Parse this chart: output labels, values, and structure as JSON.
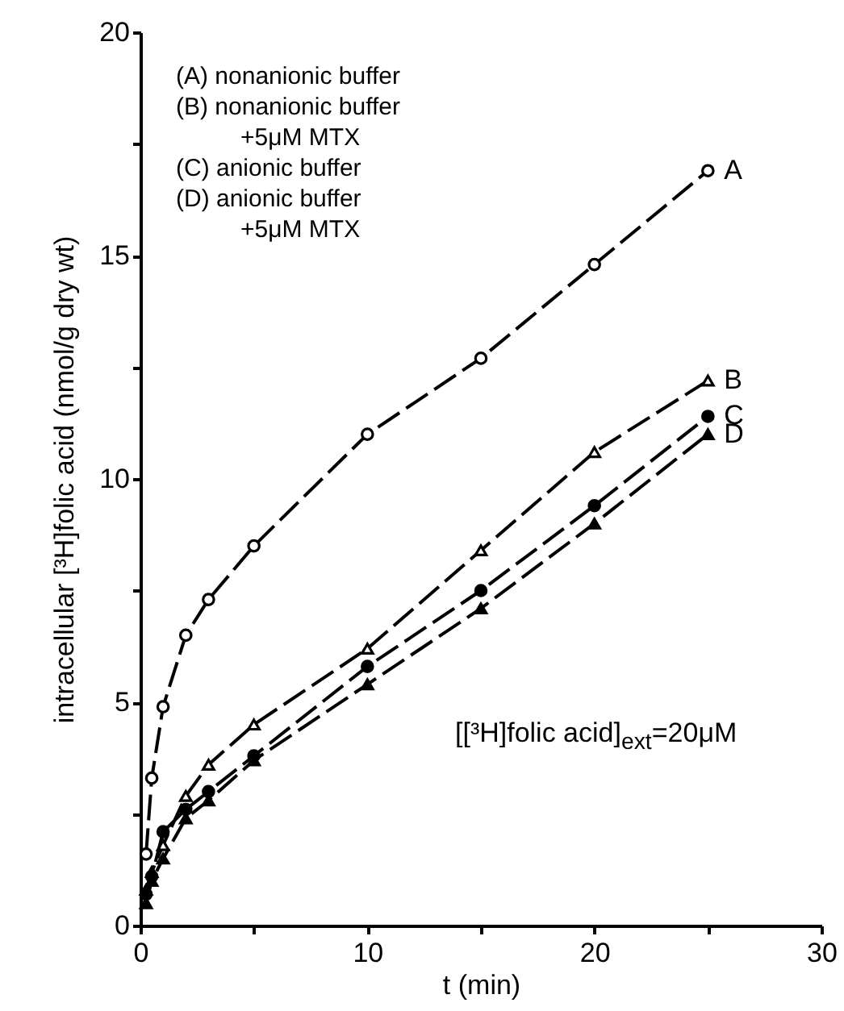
{
  "chart_data": {
    "type": "line",
    "xlabel": "t (min)",
    "ylabel": "intracellular [³H]folic acid (nmol/g dry wt)",
    "x": [
      0.25,
      0.5,
      1,
      2,
      3,
      5,
      10,
      15,
      20,
      25
    ],
    "series": [
      {
        "name": "A",
        "color": "#000000",
        "marker": "circle",
        "values": [
          1.6,
          3.3,
          4.9,
          6.5,
          7.3,
          8.5,
          11.0,
          12.7,
          14.8,
          16.9
        ]
      },
      {
        "name": "B",
        "color": "#000000",
        "marker": "triangle",
        "values": [
          0.8,
          1.2,
          1.8,
          2.9,
          3.6,
          4.5,
          6.2,
          8.4,
          10.6,
          12.2
        ]
      },
      {
        "name": "C",
        "color": "#000000",
        "marker": "circle",
        "values": [
          0.7,
          1.1,
          2.1,
          2.6,
          3.0,
          3.8,
          5.8,
          7.5,
          9.4,
          11.4
        ]
      },
      {
        "name": "D",
        "color": "#000000",
        "marker": "triangle",
        "values": [
          0.5,
          1.0,
          1.5,
          2.4,
          2.8,
          3.7,
          5.4,
          7.1,
          9.0,
          11.0
        ]
      }
    ],
    "xlim": [
      0,
      30
    ],
    "xticks": [
      0,
      {
        "value": 5,
        "label": null
      },
      10,
      {
        "value": 15,
        "label": null
      },
      20,
      {
        "value": 25,
        "label": null
      },
      30
    ],
    "ylim": [
      0,
      20
    ],
    "yticks": [
      0,
      {
        "value": 2.5,
        "label": null
      },
      5,
      {
        "value": 7.5,
        "label": null
      },
      10,
      {
        "value": 12.5,
        "label": null
      },
      15,
      {
        "value": 17.5,
        "label": null
      },
      20
    ],
    "line_style": "dashed",
    "grid": false,
    "legend": false,
    "annotations": [
      "(A) nonanionic buffer",
      "(B) nonanionic buffer",
      "+5μM MTX",
      "(C) anionic buffer",
      "(D) anionic buffer",
      "+5μM MTX",
      "[[³H]folic acid]$_{ext}$=20μM"
    ]
  }
}
